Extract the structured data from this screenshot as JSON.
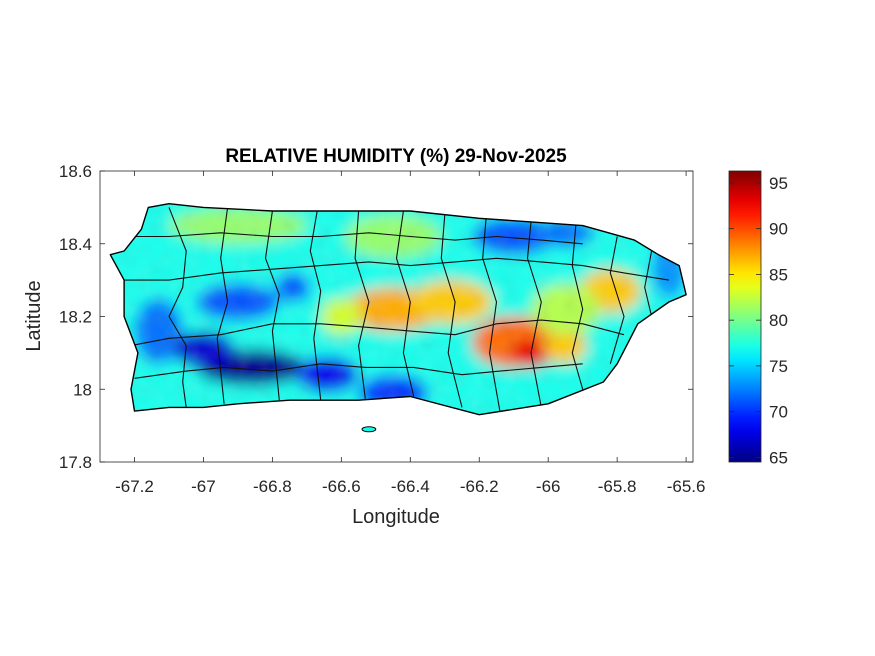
{
  "chart_data": {
    "type": "heatmap",
    "title": "RELATIVE HUMIDITY (%) 29-Nov-2025",
    "xlabel": "Longitude",
    "ylabel": "Latitude",
    "xlim": [
      -67.3,
      -65.58
    ],
    "ylim": [
      17.8,
      18.6
    ],
    "x_ticks": [
      -67.2,
      -67,
      -66.8,
      -66.6,
      -66.4,
      -66.2,
      -66,
      -65.8,
      -65.6
    ],
    "x_tick_labels": [
      "-67.2",
      "-67",
      "-66.8",
      "-66.6",
      "-66.4",
      "-66.2",
      "-66",
      "-65.8",
      "-65.6"
    ],
    "y_ticks": [
      17.8,
      18,
      18.2,
      18.4,
      18.6
    ],
    "y_tick_labels": [
      "17.8",
      "18",
      "18.2",
      "18.4",
      "18.6"
    ],
    "grid": false,
    "colormap": "jet",
    "colorbar": {
      "range": [
        64.5,
        96.3
      ],
      "ticks": [
        65,
        70,
        75,
        80,
        85,
        90,
        95
      ],
      "tick_labels": [
        "65",
        "70",
        "75",
        "80",
        "85",
        "90",
        "95"
      ],
      "position": "right"
    },
    "background_value": 77,
    "features": [
      {
        "name": "west-coast-dry",
        "lon": -67.13,
        "lat": 18.16,
        "value": 72,
        "rx": 0.07,
        "ry": 0.09
      },
      {
        "name": "southwest-dry-core",
        "lon": -66.86,
        "lat": 18.06,
        "value": 65,
        "rx": 0.16,
        "ry": 0.05
      },
      {
        "name": "southwest-dry-west",
        "lon": -67.0,
        "lat": 18.11,
        "value": 67,
        "rx": 0.09,
        "ry": 0.05
      },
      {
        "name": "south-central-dry",
        "lon": -66.64,
        "lat": 18.04,
        "value": 68,
        "rx": 0.09,
        "ry": 0.05
      },
      {
        "name": "south-dry-ponce",
        "lon": -66.45,
        "lat": 17.99,
        "value": 70,
        "rx": 0.1,
        "ry": 0.05
      },
      {
        "name": "west-interior-dry",
        "lon": -66.9,
        "lat": 18.24,
        "value": 71,
        "rx": 0.12,
        "ry": 0.05
      },
      {
        "name": "north-west-dry",
        "lon": -66.74,
        "lat": 18.28,
        "value": 71,
        "rx": 0.05,
        "ry": 0.04
      },
      {
        "name": "northeast-dry",
        "lon": -66.1,
        "lat": 18.42,
        "value": 71,
        "rx": 0.12,
        "ry": 0.05
      },
      {
        "name": "northeast-dry-2",
        "lon": -65.95,
        "lat": 18.43,
        "value": 72,
        "rx": 0.08,
        "ry": 0.04
      },
      {
        "name": "east-coast-dry",
        "lon": -65.65,
        "lat": 18.33,
        "value": 73,
        "rx": 0.05,
        "ry": 0.08
      },
      {
        "name": "north-coast-green",
        "lon": -66.9,
        "lat": 18.45,
        "value": 81,
        "rx": 0.2,
        "ry": 0.05
      },
      {
        "name": "north-central-green",
        "lon": -66.45,
        "lat": 18.42,
        "value": 81,
        "rx": 0.14,
        "ry": 0.06
      },
      {
        "name": "central-humid",
        "lon": -66.45,
        "lat": 18.22,
        "value": 87,
        "rx": 0.14,
        "ry": 0.06
      },
      {
        "name": "central-humid-2",
        "lon": -66.28,
        "lat": 18.24,
        "value": 86,
        "rx": 0.12,
        "ry": 0.06
      },
      {
        "name": "east-central-humid",
        "lon": -66.1,
        "lat": 18.13,
        "value": 89,
        "rx": 0.12,
        "ry": 0.07
      },
      {
        "name": "cayey-humid-core",
        "lon": -66.05,
        "lat": 18.1,
        "value": 93,
        "rx": 0.06,
        "ry": 0.04
      },
      {
        "name": "southeast-humid",
        "lon": -65.95,
        "lat": 18.12,
        "value": 86,
        "rx": 0.06,
        "ry": 0.05
      },
      {
        "name": "el-yunque-humid",
        "lon": -65.79,
        "lat": 18.29,
        "value": 93,
        "rx": 0.05,
        "ry": 0.03
      },
      {
        "name": "el-yunque-halo",
        "lon": -65.82,
        "lat": 18.27,
        "value": 86,
        "rx": 0.09,
        "ry": 0.06
      },
      {
        "name": "east-interior-green",
        "lon": -65.95,
        "lat": 18.22,
        "value": 82,
        "rx": 0.1,
        "ry": 0.07
      },
      {
        "name": "central-west-humid",
        "lon": -66.6,
        "lat": 18.2,
        "value": 83,
        "rx": 0.06,
        "ry": 0.05
      }
    ],
    "island_outline": [
      [
        -67.27,
        18.37
      ],
      [
        -67.23,
        18.38
      ],
      [
        -67.18,
        18.44
      ],
      [
        -67.16,
        18.5
      ],
      [
        -67.1,
        18.51
      ],
      [
        -67.0,
        18.5
      ],
      [
        -66.8,
        18.49
      ],
      [
        -66.6,
        18.49
      ],
      [
        -66.4,
        18.49
      ],
      [
        -66.2,
        18.47
      ],
      [
        -66.05,
        18.46
      ],
      [
        -65.9,
        18.45
      ],
      [
        -65.75,
        18.41
      ],
      [
        -65.68,
        18.37
      ],
      [
        -65.62,
        18.34
      ],
      [
        -65.6,
        18.26
      ],
      [
        -65.65,
        18.24
      ],
      [
        -65.74,
        18.18
      ],
      [
        -65.8,
        18.07
      ],
      [
        -65.84,
        18.02
      ],
      [
        -66.0,
        17.96
      ],
      [
        -66.2,
        17.93
      ],
      [
        -66.4,
        17.98
      ],
      [
        -66.55,
        17.97
      ],
      [
        -66.75,
        17.97
      ],
      [
        -66.9,
        17.96
      ],
      [
        -67.0,
        17.95
      ],
      [
        -67.1,
        17.95
      ],
      [
        -67.2,
        17.94
      ],
      [
        -67.21,
        18.0
      ],
      [
        -67.19,
        18.1
      ],
      [
        -67.23,
        18.2
      ],
      [
        -67.23,
        18.3
      ],
      [
        -67.27,
        18.37
      ]
    ],
    "small_islands": [
      {
        "name": "caja-de-muertos",
        "lon": -66.52,
        "lat": 17.89,
        "rx": 0.02,
        "ry": 0.007
      }
    ],
    "municipal_borders": [
      [
        [
          -67.1,
          18.5
        ],
        [
          -67.05,
          18.38
        ],
        [
          -67.06,
          18.28
        ],
        [
          -67.1,
          18.2
        ],
        [
          -67.05,
          18.12
        ],
        [
          -67.06,
          18.02
        ],
        [
          -67.05,
          17.95
        ]
      ],
      [
        [
          -66.93,
          18.5
        ],
        [
          -66.95,
          18.36
        ],
        [
          -66.93,
          18.24
        ],
        [
          -66.96,
          18.14
        ],
        [
          -66.94,
          17.96
        ]
      ],
      [
        [
          -66.8,
          18.49
        ],
        [
          -66.82,
          18.36
        ],
        [
          -66.78,
          18.26
        ],
        [
          -66.8,
          18.16
        ],
        [
          -66.78,
          17.97
        ]
      ],
      [
        [
          -66.67,
          18.49
        ],
        [
          -66.69,
          18.38
        ],
        [
          -66.66,
          18.27
        ],
        [
          -66.68,
          18.14
        ],
        [
          -66.66,
          17.97
        ]
      ],
      [
        [
          -66.55,
          18.49
        ],
        [
          -66.56,
          18.36
        ],
        [
          -66.52,
          18.24
        ],
        [
          -66.55,
          18.12
        ],
        [
          -66.53,
          17.97
        ]
      ],
      [
        [
          -66.42,
          18.49
        ],
        [
          -66.44,
          18.36
        ],
        [
          -66.4,
          18.24
        ],
        [
          -66.42,
          18.1
        ],
        [
          -66.39,
          17.98
        ]
      ],
      [
        [
          -66.3,
          18.48
        ],
        [
          -66.31,
          18.36
        ],
        [
          -66.27,
          18.24
        ],
        [
          -66.29,
          18.1
        ],
        [
          -66.25,
          17.95
        ]
      ],
      [
        [
          -66.18,
          18.47
        ],
        [
          -66.19,
          18.36
        ],
        [
          -66.15,
          18.24
        ],
        [
          -66.17,
          18.1
        ],
        [
          -66.14,
          17.94
        ]
      ],
      [
        [
          -66.05,
          18.46
        ],
        [
          -66.06,
          18.36
        ],
        [
          -66.02,
          18.24
        ],
        [
          -66.05,
          18.1
        ],
        [
          -66.02,
          17.95
        ]
      ],
      [
        [
          -65.92,
          18.45
        ],
        [
          -65.93,
          18.34
        ],
        [
          -65.9,
          18.22
        ],
        [
          -65.93,
          18.1
        ],
        [
          -65.9,
          18.0
        ]
      ],
      [
        [
          -65.8,
          18.42
        ],
        [
          -65.82,
          18.32
        ],
        [
          -65.78,
          18.2
        ],
        [
          -65.82,
          18.07
        ]
      ],
      [
        [
          -65.7,
          18.38
        ],
        [
          -65.72,
          18.28
        ],
        [
          -65.7,
          18.2
        ]
      ],
      [
        [
          -67.23,
          18.3
        ],
        [
          -67.1,
          18.3
        ],
        [
          -66.95,
          18.32
        ],
        [
          -66.8,
          18.33
        ],
        [
          -66.66,
          18.34
        ],
        [
          -66.52,
          18.35
        ],
        [
          -66.4,
          18.34
        ],
        [
          -66.27,
          18.35
        ],
        [
          -66.15,
          18.36
        ],
        [
          -66.02,
          18.35
        ],
        [
          -65.9,
          18.34
        ],
        [
          -65.78,
          18.32
        ],
        [
          -65.65,
          18.3
        ]
      ],
      [
        [
          -67.21,
          18.12
        ],
        [
          -67.1,
          18.14
        ],
        [
          -66.95,
          18.15
        ],
        [
          -66.8,
          18.18
        ],
        [
          -66.66,
          18.18
        ],
        [
          -66.52,
          18.17
        ],
        [
          -66.4,
          18.16
        ],
        [
          -66.27,
          18.15
        ],
        [
          -66.15,
          18.18
        ],
        [
          -66.02,
          18.19
        ],
        [
          -65.9,
          18.18
        ],
        [
          -65.78,
          18.15
        ]
      ],
      [
        [
          -67.2,
          18.42
        ],
        [
          -67.1,
          18.42
        ],
        [
          -66.95,
          18.43
        ],
        [
          -66.8,
          18.42
        ],
        [
          -66.66,
          18.42
        ],
        [
          -66.52,
          18.43
        ],
        [
          -66.4,
          18.42
        ],
        [
          -66.27,
          18.41
        ],
        [
          -66.15,
          18.42
        ],
        [
          -66.02,
          18.41
        ],
        [
          -65.9,
          18.4
        ]
      ],
      [
        [
          -67.2,
          18.03
        ],
        [
          -67.05,
          18.05
        ],
        [
          -66.94,
          18.06
        ],
        [
          -66.8,
          18.05
        ],
        [
          -66.66,
          18.07
        ],
        [
          -66.53,
          18.06
        ],
        [
          -66.39,
          18.06
        ],
        [
          -66.25,
          18.04
        ],
        [
          -66.14,
          18.05
        ],
        [
          -66.02,
          18.06
        ],
        [
          -65.9,
          18.07
        ]
      ]
    ]
  }
}
